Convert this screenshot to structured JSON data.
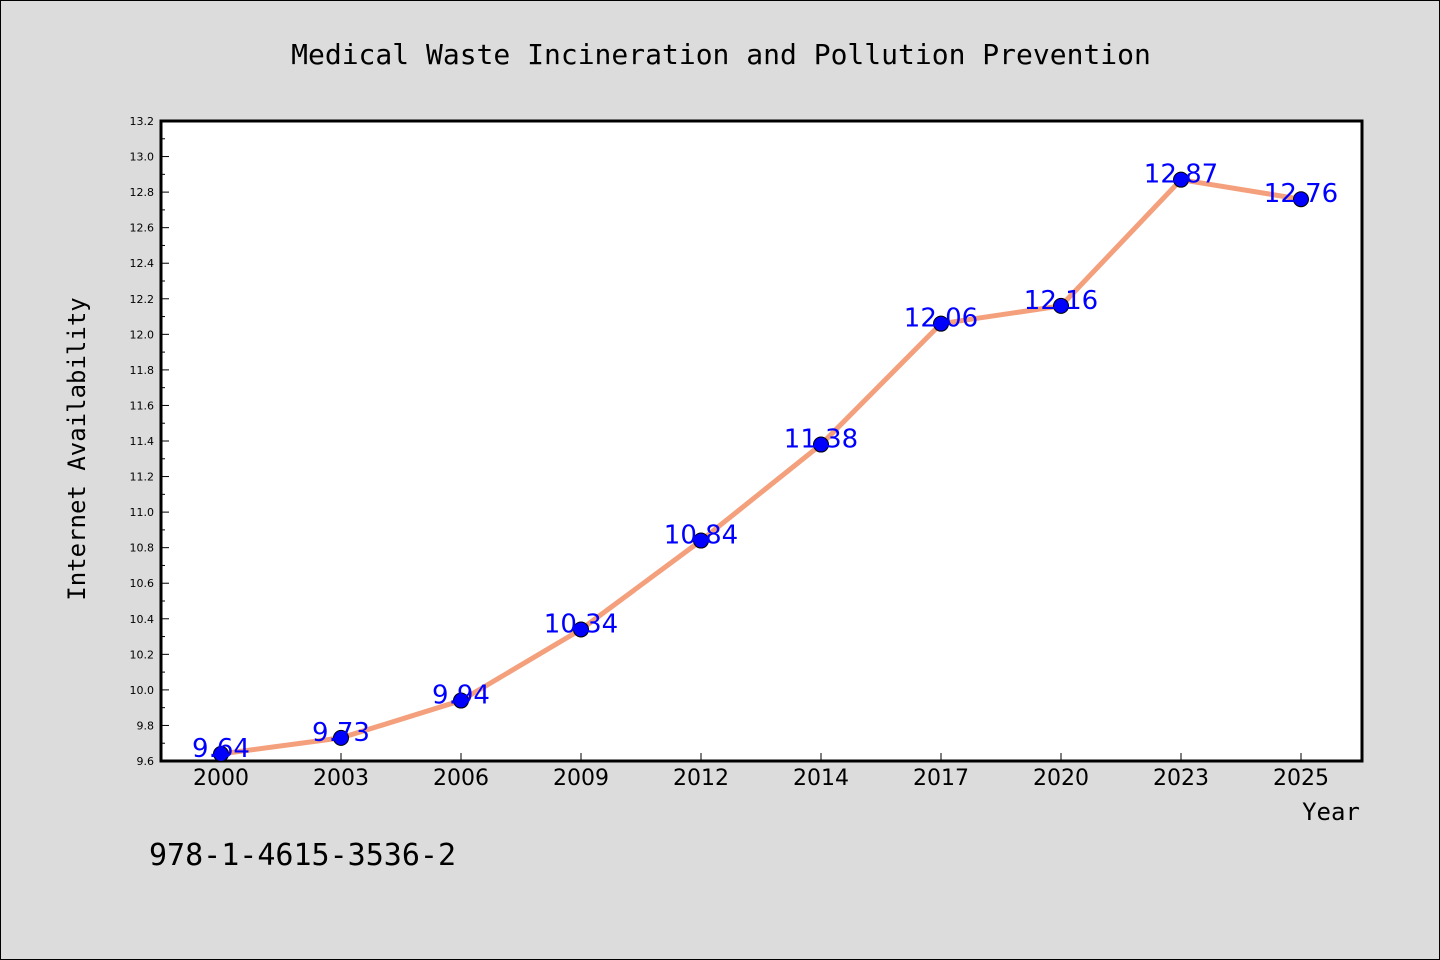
{
  "chart_data": {
    "type": "line",
    "title": "Medical Waste Incineration and Pollution Prevention",
    "xlabel": "Year",
    "ylabel": "Internet Availability",
    "categories": [
      "2000",
      "2003",
      "2006",
      "2009",
      "2012",
      "2014",
      "2017",
      "2020",
      "2023",
      "2025"
    ],
    "series": [
      {
        "values": [
          9.64,
          9.73,
          9.94,
          10.34,
          10.84,
          11.38,
          12.06,
          12.16,
          12.87,
          12.76
        ],
        "line_color": "#f4a07c",
        "marker_color": "#0000ff"
      }
    ],
    "data_labels": [
      "9.64",
      "9.73",
      "9.94",
      "10.34",
      "10.84",
      "11.38",
      "12.06",
      "12.16",
      "12.87",
      "12.76"
    ],
    "ylim": [
      9.6,
      13.2
    ],
    "yticks": [
      "9.6",
      "9.8",
      "10.0",
      "10.2",
      "10.4",
      "10.6",
      "10.8",
      "11.0",
      "11.2",
      "11.4",
      "11.6",
      "11.8",
      "12.0",
      "12.2",
      "12.4",
      "12.6",
      "12.8",
      "13.0",
      "13.2"
    ],
    "grid": false,
    "legend": "none"
  },
  "annotation": "978-1-4615-3536-2"
}
